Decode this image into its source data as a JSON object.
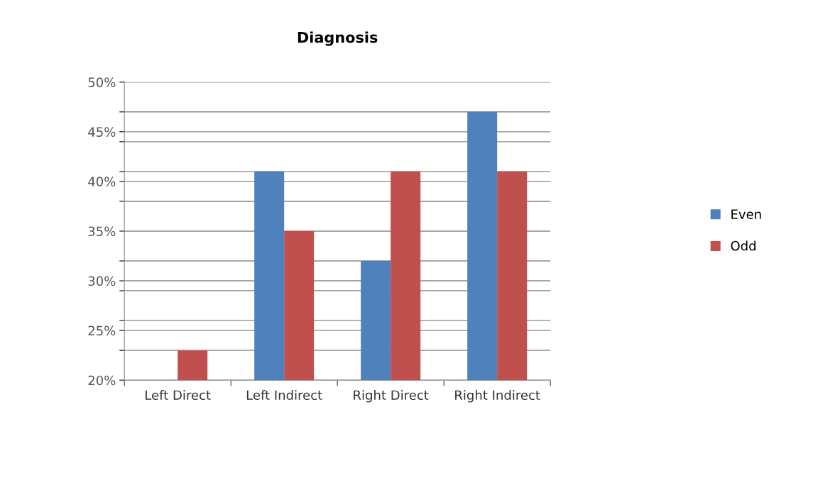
{
  "chart_data": {
    "type": "bar",
    "title": "Diagnosis",
    "categories": [
      "Left Direct",
      "Left Indirect",
      "Right Direct",
      "Right Indirect"
    ],
    "series": [
      {
        "name": "Even",
        "color": "#4f81bd",
        "values": [
          null,
          41,
          32,
          47
        ]
      },
      {
        "name": "Odd",
        "color": "#c0504d",
        "values": [
          23,
          35,
          41,
          41
        ]
      }
    ],
    "ylim": [
      20,
      50
    ],
    "yticks": [
      {
        "value": 20,
        "label": "20%"
      },
      {
        "value": 23,
        "label": null
      },
      {
        "value": 25,
        "label": "25%"
      },
      {
        "value": 26,
        "label": null
      },
      {
        "value": 29,
        "label": null
      },
      {
        "value": 30,
        "label": "30%"
      },
      {
        "value": 32,
        "label": null
      },
      {
        "value": 35,
        "label": "35%"
      },
      {
        "value": 38,
        "label": null
      },
      {
        "value": 40,
        "label": "40%"
      },
      {
        "value": 41,
        "label": null
      },
      {
        "value": 44,
        "label": null
      },
      {
        "value": 45,
        "label": "45%"
      },
      {
        "value": 47,
        "label": null
      },
      {
        "value": 50,
        "label": "50%"
      }
    ],
    "grid": "y",
    "legend": "right"
  }
}
